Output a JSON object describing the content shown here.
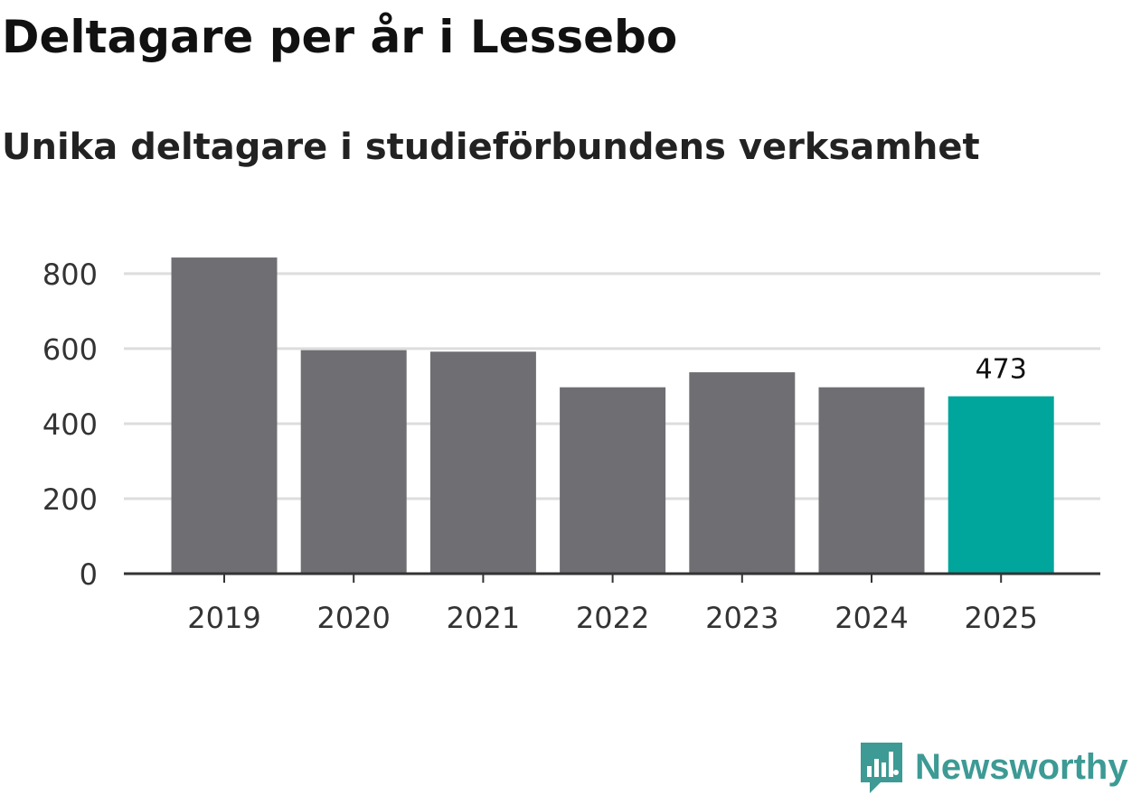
{
  "chart_data": {
    "type": "bar",
    "title": "Deltagare per år i Lessebo",
    "subtitle": "Unika deltagare i studieförbundens verksamhet",
    "categories": [
      "2019",
      "2020",
      "2021",
      "2022",
      "2023",
      "2024",
      "2025"
    ],
    "values": [
      843,
      596,
      592,
      497,
      537,
      497,
      473
    ],
    "highlight_index": 6,
    "data_labels": [
      {
        "index": 6,
        "text": "473"
      }
    ],
    "yticks": [
      0,
      200,
      400,
      600,
      800
    ],
    "ylim": [
      0,
      860
    ],
    "xlabel": "",
    "ylabel": "",
    "grid": true,
    "colors": {
      "bar": "#6f6e73",
      "highlight": "#00a59b",
      "grid": "#dddddd",
      "axis": "#333333",
      "tick_text": "#333333"
    }
  },
  "brand": {
    "name": "Newsworthy",
    "icon": "newsworthy-logo-icon",
    "color": "#3d9a94"
  }
}
